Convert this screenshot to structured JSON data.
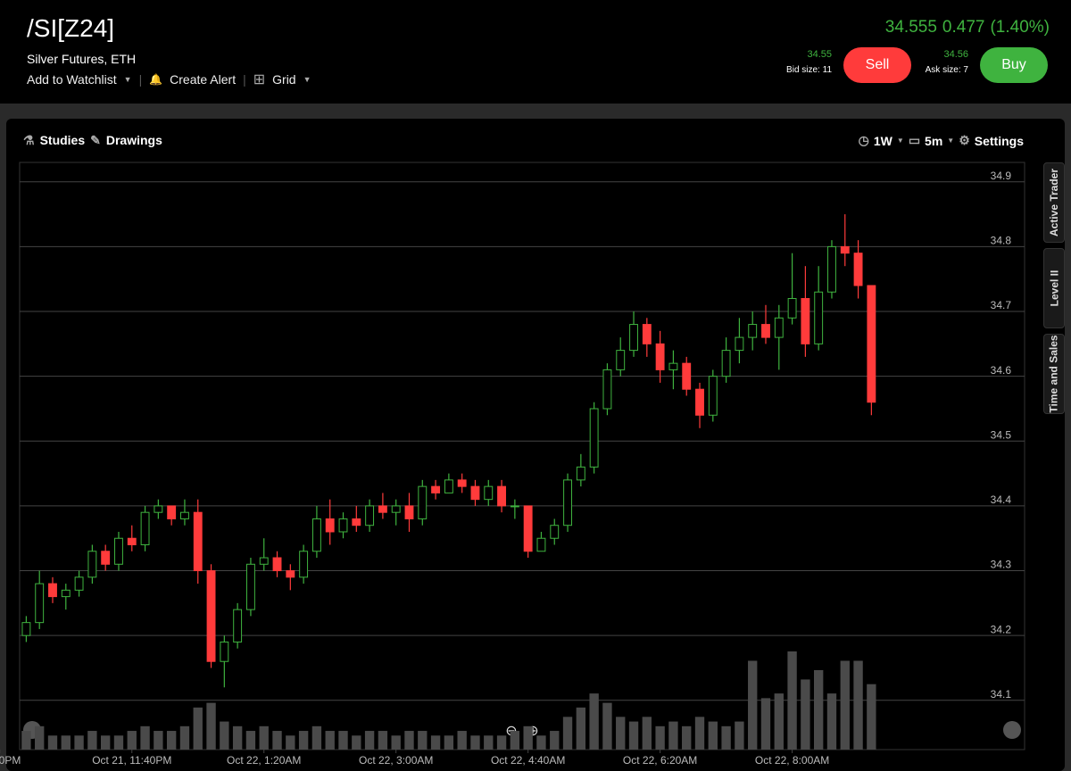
{
  "header": {
    "symbol": "/SI[Z24]",
    "description": "Silver Futures, ETH",
    "last": 34.555,
    "change": 0.477,
    "change_pct": "(1.40%)",
    "actions": [
      "Add to Watchlist",
      "Create Alert",
      "Grid"
    ],
    "bid": 34.55,
    "bid_size": "Bid size: 11",
    "sell": "Sell",
    "ask": 34.56,
    "ask_size": "Ask size: 7",
    "buy": "Buy"
  },
  "toolbar": {
    "studies": "Studies",
    "drawings": "Drawings",
    "range": "1W",
    "interval": "5m",
    "settings": "Settings"
  },
  "side_tabs": [
    "Active Trader",
    "Level II",
    "Time and Sales"
  ],
  "chart_data": {
    "type": "candlestick",
    "up_color": "#3fb33f",
    "down_color": "#ff3b3b",
    "volume_color": "#4a4a4a",
    "grid": true,
    "open": [
      34.2,
      34.22,
      34.28,
      34.26,
      34.27,
      34.29,
      34.33,
      34.31,
      34.35,
      34.34,
      34.39,
      34.4,
      34.38,
      34.39,
      34.3,
      34.16,
      34.19,
      34.24,
      34.31,
      34.32,
      34.3,
      34.29,
      34.33,
      34.38,
      34.36,
      34.38,
      34.37,
      34.4,
      34.39,
      34.4,
      34.38,
      34.43,
      34.42,
      34.44,
      34.43,
      34.41,
      34.43,
      34.4,
      34.4,
      34.33,
      34.35,
      34.37,
      34.44,
      34.46,
      34.55,
      34.61,
      34.64,
      34.68,
      34.65,
      34.61,
      34.62,
      34.58,
      34.54,
      34.6,
      34.64,
      34.66,
      34.68,
      34.66,
      34.69,
      34.72,
      34.65,
      34.73,
      34.8,
      34.79,
      34.74
    ],
    "high": [
      34.23,
      34.3,
      34.29,
      34.28,
      34.3,
      34.34,
      34.34,
      34.36,
      34.37,
      34.4,
      34.41,
      34.4,
      34.41,
      34.41,
      34.31,
      34.2,
      34.25,
      34.32,
      34.35,
      34.33,
      34.31,
      34.34,
      34.4,
      34.41,
      34.39,
      34.4,
      34.41,
      34.42,
      34.41,
      34.42,
      34.44,
      34.44,
      34.45,
      34.45,
      34.44,
      34.44,
      34.44,
      34.41,
      34.4,
      34.36,
      34.38,
      34.45,
      34.48,
      34.56,
      34.62,
      34.66,
      34.7,
      34.69,
      34.67,
      34.64,
      34.63,
      34.59,
      34.61,
      34.66,
      34.69,
      34.7,
      34.71,
      34.71,
      34.79,
      34.77,
      34.77,
      34.81,
      34.85,
      34.81,
      34.74
    ],
    "low": [
      34.19,
      34.21,
      34.25,
      34.24,
      34.26,
      34.28,
      34.3,
      34.3,
      34.33,
      34.33,
      34.38,
      34.37,
      34.37,
      34.28,
      34.15,
      34.12,
      34.18,
      34.23,
      34.3,
      34.29,
      34.27,
      34.28,
      34.32,
      34.34,
      34.35,
      34.36,
      34.36,
      34.38,
      34.37,
      34.36,
      34.37,
      34.41,
      34.42,
      34.42,
      34.4,
      34.4,
      34.39,
      34.38,
      34.32,
      34.33,
      34.34,
      34.36,
      34.43,
      34.45,
      34.54,
      34.6,
      34.63,
      34.63,
      34.59,
      34.58,
      34.57,
      34.52,
      34.53,
      34.59,
      34.62,
      34.64,
      34.65,
      34.61,
      34.68,
      34.63,
      34.64,
      34.72,
      34.77,
      34.72,
      34.54
    ],
    "close": [
      34.22,
      34.28,
      34.26,
      34.27,
      34.29,
      34.33,
      34.31,
      34.35,
      34.34,
      34.39,
      34.4,
      34.38,
      34.39,
      34.3,
      34.16,
      34.19,
      34.24,
      34.31,
      34.32,
      34.3,
      34.29,
      34.33,
      34.38,
      34.36,
      34.38,
      34.37,
      34.4,
      34.39,
      34.4,
      34.38,
      34.43,
      34.42,
      34.44,
      34.43,
      34.41,
      34.43,
      34.4,
      34.4,
      34.33,
      34.35,
      34.37,
      34.44,
      34.46,
      34.55,
      34.61,
      34.64,
      34.68,
      34.65,
      34.61,
      34.62,
      34.58,
      34.54,
      34.6,
      34.64,
      34.66,
      34.68,
      34.66,
      34.69,
      34.72,
      34.65,
      34.73,
      34.8,
      34.79,
      34.74,
      34.56
    ],
    "volume": [
      20,
      25,
      15,
      15,
      15,
      20,
      15,
      15,
      20,
      25,
      20,
      20,
      25,
      45,
      50,
      30,
      25,
      20,
      25,
      20,
      15,
      20,
      25,
      20,
      20,
      15,
      20,
      20,
      15,
      20,
      20,
      15,
      15,
      20,
      15,
      15,
      15,
      20,
      25,
      15,
      20,
      35,
      45,
      60,
      50,
      35,
      30,
      35,
      25,
      30,
      25,
      35,
      30,
      25,
      30,
      95,
      55,
      60,
      105,
      75,
      85,
      60,
      95,
      95,
      70
    ],
    "xlim": [
      -0.5,
      75.6
    ],
    "xticks": [
      {
        "value": -2,
        "label": "0PM"
      },
      {
        "value": 8,
        "label": "Oct 21, 11:40PM"
      },
      {
        "value": 18,
        "label": "Oct 22, 1:20AM"
      },
      {
        "value": 28,
        "label": "Oct 22, 3:00AM"
      },
      {
        "value": 38,
        "label": "Oct 22, 4:40AM"
      },
      {
        "value": 48,
        "label": "Oct 22, 6:20AM"
      },
      {
        "value": 58,
        "label": "Oct 22, 8:00AM"
      }
    ],
    "ylim": [
      34.024,
      34.93
    ],
    "yticks": [
      34.1,
      34.2,
      34.3,
      34.4,
      34.5,
      34.6,
      34.7,
      34.8,
      34.9
    ]
  }
}
